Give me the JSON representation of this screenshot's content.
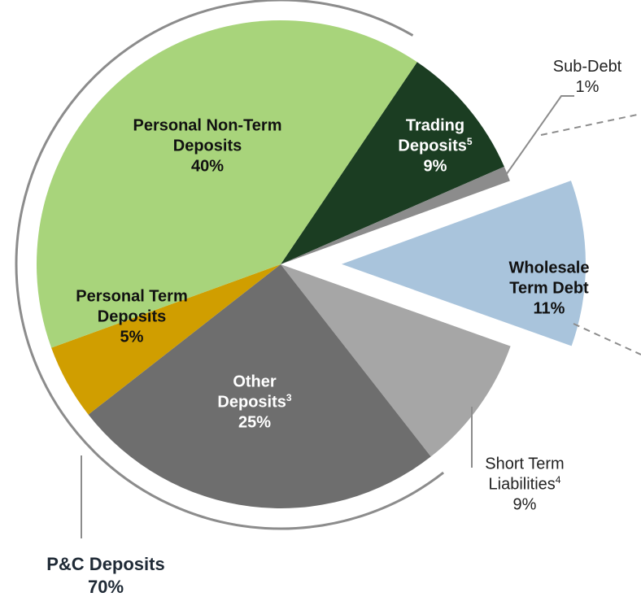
{
  "chart_data": {
    "type": "pie",
    "slices": [
      {
        "name": "Trading Deposits",
        "footnote": "5",
        "value": 9,
        "value_label": "9%",
        "color": "#1b3d22",
        "text_color": "#ffffff",
        "bold": true
      },
      {
        "name": "Sub-Debt",
        "value": 1,
        "value_label": "1%",
        "color": "#8c8c8c",
        "text_color": "#222222",
        "bold": false
      },
      {
        "name": "Wholesale Term Debt",
        "value": 11,
        "value_label": "11%",
        "color": "#a9c4dc",
        "text_color": "#111111",
        "bold": true,
        "exploded": true
      },
      {
        "name": "Short Term Liabilities",
        "footnote": "4",
        "value": 9,
        "value_label": "9%",
        "color": "#a6a6a6",
        "text_color": "#222222",
        "bold": false
      },
      {
        "name": "Other Deposits",
        "footnote": "3",
        "value": 25,
        "value_label": "25%",
        "color": "#6e6e6e",
        "text_color": "#ffffff",
        "bold": true
      },
      {
        "name": "Personal Term Deposits",
        "value": 5,
        "value_label": "5%",
        "color": "#d09e00",
        "text_color": "#111111",
        "bold": true
      },
      {
        "name": "Personal Non-Term Deposits",
        "value": 40,
        "value_label": "40%",
        "color": "#a8d47b",
        "text_color": "#111111",
        "bold": true
      }
    ],
    "group": {
      "name": "P&C Deposits",
      "value": 70,
      "value_label": "70%"
    }
  }
}
